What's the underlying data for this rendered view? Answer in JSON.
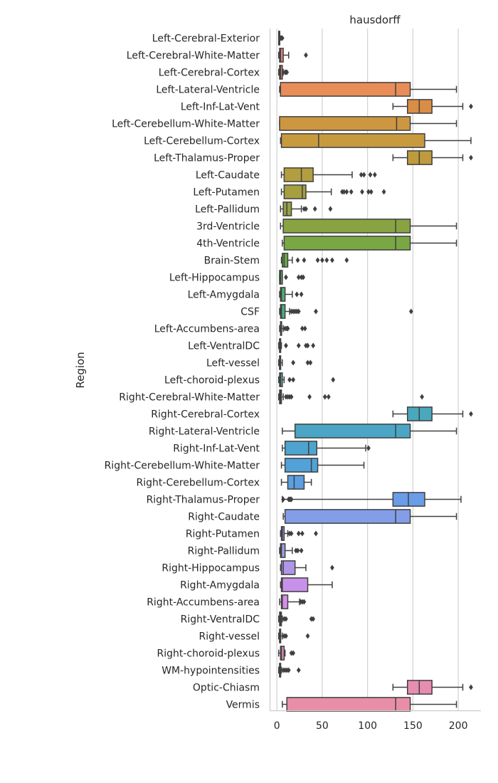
{
  "chart_data": {
    "type": "boxplot",
    "orientation": "horizontal",
    "title": "hausdorff",
    "xlabel": "",
    "ylabel": "Region",
    "xlim": [
      -8,
      225
    ],
    "xticks": [
      0,
      50,
      100,
      150,
      200
    ],
    "grid": "vertical",
    "box_style": {
      "line_color": "#404040"
    },
    "series": [
      {
        "name": "Left-Cerebral-Exterior",
        "color": "#e8918c",
        "whislo": 2,
        "q1": 2,
        "median": 2,
        "q3": 3,
        "whishi": 3,
        "fliers": [
          4,
          5,
          6
        ]
      },
      {
        "name": "Left-Cerebral-White-Matter",
        "color": "#e3837a",
        "whislo": 2,
        "q1": 3,
        "median": 4,
        "q3": 7,
        "whishi": 13,
        "fliers": [
          32
        ]
      },
      {
        "name": "Left-Cerebral-Cortex",
        "color": "#e08a6c",
        "whislo": 2,
        "q1": 3,
        "median": 4,
        "q3": 6,
        "whishi": 7,
        "fliers": [
          9,
          10,
          11
        ]
      },
      {
        "name": "Left-Lateral-Ventricle",
        "color": "#e88c58",
        "whislo": 3,
        "q1": 4,
        "median": 131,
        "q3": 147,
        "whishi": 198,
        "fliers": []
      },
      {
        "name": "Left-Inf-Lat-Vent",
        "color": "#d98d45",
        "whislo": 128,
        "q1": 144,
        "median": 157,
        "q3": 171,
        "whishi": 205,
        "fliers": [
          214
        ]
      },
      {
        "name": "Left-Cerebellum-White-Matter",
        "color": "#cd9641",
        "whislo": 3,
        "q1": 3,
        "median": 132,
        "q3": 147,
        "whishi": 198,
        "fliers": []
      },
      {
        "name": "Left-Cerebellum-Cortex",
        "color": "#c89a3e",
        "whislo": 4,
        "q1": 5,
        "median": 46,
        "q3": 163,
        "whishi": 214,
        "fliers": []
      },
      {
        "name": "Left-Thalamus-Proper",
        "color": "#bf9b3d",
        "whislo": 128,
        "q1": 144,
        "median": 157,
        "q3": 171,
        "whishi": 205,
        "fliers": [
          214
        ]
      },
      {
        "name": "Left-Caudate",
        "color": "#b39e3f",
        "whislo": 5,
        "q1": 8,
        "median": 27,
        "q3": 40,
        "whishi": 83,
        "fliers": [
          93,
          96,
          103,
          108
        ]
      },
      {
        "name": "Left-Putamen",
        "color": "#a59f40",
        "whislo": 5,
        "q1": 8,
        "median": 28,
        "q3": 32,
        "whishi": 60,
        "fliers": [
          72,
          74,
          77,
          82,
          94,
          101,
          104,
          118
        ]
      },
      {
        "name": "Left-Pallidum",
        "color": "#96a140",
        "whislo": 4,
        "q1": 7,
        "median": 11,
        "q3": 16,
        "whishi": 27,
        "fliers": [
          30,
          32,
          42,
          59
        ]
      },
      {
        "name": "3rd-Ventricle",
        "color": "#88a442",
        "whislo": 4,
        "q1": 7,
        "median": 131,
        "q3": 147,
        "whishi": 198,
        "fliers": []
      },
      {
        "name": "4th-Ventricle",
        "color": "#79a744",
        "whislo": 6,
        "q1": 8,
        "median": 131,
        "q3": 147,
        "whishi": 198,
        "fliers": []
      },
      {
        "name": "Brain-Stem",
        "color": "#6aab47",
        "whislo": 5,
        "q1": 6,
        "median": 8,
        "q3": 12,
        "whishi": 17,
        "fliers": [
          23,
          30,
          45,
          50,
          55,
          61,
          77
        ]
      },
      {
        "name": "Left-Hippocampus",
        "color": "#56ad59",
        "whislo": 3,
        "q1": 3,
        "median": 4,
        "q3": 6,
        "whishi": 6,
        "fliers": [
          10,
          24,
          27,
          29
        ]
      },
      {
        "name": "Left-Amygdala",
        "color": "#4daf72",
        "whislo": 3,
        "q1": 4,
        "median": 5,
        "q3": 9,
        "whishi": 17,
        "fliers": [
          22,
          27
        ]
      },
      {
        "name": "CSF",
        "color": "#4aae84",
        "whislo": 3,
        "q1": 4,
        "median": 5,
        "q3": 9,
        "whishi": 14,
        "fliers": [
          16,
          18,
          20,
          22,
          24,
          43,
          148
        ]
      },
      {
        "name": "Left-Accumbens-area",
        "color": "#4aad8f",
        "whislo": 3,
        "q1": 4,
        "median": 5,
        "q3": 5,
        "whishi": 7,
        "fliers": [
          9,
          11,
          12,
          28,
          31
        ]
      },
      {
        "name": "Left-VentralDC",
        "color": "#4aad98",
        "whislo": 2,
        "q1": 3,
        "median": 3,
        "q3": 4,
        "whishi": 5,
        "fliers": [
          10,
          24,
          32,
          34,
          40
        ]
      },
      {
        "name": "Left-vessel",
        "color": "#4aaca0",
        "whislo": 2,
        "q1": 3,
        "median": 3,
        "q3": 4,
        "whishi": 6,
        "fliers": [
          18,
          34,
          37
        ]
      },
      {
        "name": "Left-choroid-plexus",
        "color": "#4aaba9",
        "whislo": 2,
        "q1": 3,
        "median": 4,
        "q3": 6,
        "whishi": 8,
        "fliers": [
          14,
          18,
          62
        ]
      },
      {
        "name": "Right-Cerebral-White-Matter",
        "color": "#4aaab2",
        "whislo": 2,
        "q1": 3,
        "median": 4,
        "q3": 5,
        "whishi": 7,
        "fliers": [
          10,
          12,
          14,
          16,
          36,
          53,
          57,
          160
        ]
      },
      {
        "name": "Right-Cerebral-Cortex",
        "color": "#4aa8bc",
        "whislo": 128,
        "q1": 144,
        "median": 157,
        "q3": 171,
        "whishi": 205,
        "fliers": [
          214
        ]
      },
      {
        "name": "Right-Lateral-Ventricle",
        "color": "#4ba6c5",
        "whislo": 6,
        "q1": 20,
        "median": 131,
        "q3": 147,
        "whishi": 198,
        "fliers": []
      },
      {
        "name": "Right-Inf-Lat-Vent",
        "color": "#4ea4cf",
        "whislo": 6,
        "q1": 9,
        "median": 35,
        "q3": 44,
        "whishi": 98,
        "fliers": [
          101
        ]
      },
      {
        "name": "Right-Cerebellum-White-Matter",
        "color": "#53a1d9",
        "whislo": 5,
        "q1": 9,
        "median": 38,
        "q3": 45,
        "whishi": 96,
        "fliers": []
      },
      {
        "name": "Right-Cerebellum-Cortex",
        "color": "#5b9ee2",
        "whislo": 5,
        "q1": 12,
        "median": 19,
        "q3": 30,
        "whishi": 38,
        "fliers": []
      },
      {
        "name": "Right-Thalamus-Proper",
        "color": "#6a9ce8",
        "whislo": 6,
        "q1": 128,
        "median": 145,
        "q3": 163,
        "whishi": 203,
        "fliers": [
          7,
          13,
          14,
          15,
          16
        ]
      },
      {
        "name": "Right-Caudate",
        "color": "#839de8",
        "whislo": 7,
        "q1": 9,
        "median": 131,
        "q3": 147,
        "whishi": 198,
        "fliers": []
      },
      {
        "name": "Right-Putamen",
        "color": "#929ce8",
        "whislo": 4,
        "q1": 5,
        "median": 6,
        "q3": 8,
        "whishi": 12,
        "fliers": [
          14,
          16,
          24,
          28,
          43
        ]
      },
      {
        "name": "Right-Pallidum",
        "color": "#9f9be7",
        "whislo": 3,
        "q1": 4,
        "median": 5,
        "q3": 9,
        "whishi": 17,
        "fliers": [
          21,
          23,
          27
        ]
      },
      {
        "name": "Right-Hippocampus",
        "color": "#b096e8",
        "whislo": 4,
        "q1": 5,
        "median": 7,
        "q3": 20,
        "whishi": 32,
        "fliers": [
          61
        ]
      },
      {
        "name": "Right-Amygdala",
        "color": "#c891e9",
        "whislo": 4,
        "q1": 5,
        "median": 6,
        "q3": 34,
        "whishi": 61,
        "fliers": []
      },
      {
        "name": "Right-Accumbens-area",
        "color": "#d58fe4",
        "whislo": 3,
        "q1": 5,
        "median": 6,
        "q3": 12,
        "whishi": 25,
        "fliers": [
          26,
          28,
          30
        ]
      },
      {
        "name": "Right-VentralDC",
        "color": "#dc8ed9",
        "whislo": 2,
        "q1": 3,
        "median": 4,
        "q3": 5,
        "whishi": 6,
        "fliers": [
          8,
          10,
          38,
          40
        ]
      },
      {
        "name": "Right-vessel",
        "color": "#e08dcd",
        "whislo": 2,
        "q1": 3,
        "median": 3,
        "q3": 4,
        "whishi": 6,
        "fliers": [
          8,
          10,
          34
        ]
      },
      {
        "name": "Right-choroid-plexus",
        "color": "#e38dc2",
        "whislo": 2,
        "q1": 4,
        "median": 5,
        "q3": 8,
        "whishi": 9,
        "fliers": [
          16,
          18
        ]
      },
      {
        "name": "WM-hypointensities",
        "color": "#e68db8",
        "whislo": 2,
        "q1": 3,
        "median": 3,
        "q3": 4,
        "whishi": 5,
        "fliers": [
          7,
          9,
          11,
          13,
          24
        ]
      },
      {
        "name": "Optic-Chiasm",
        "color": "#e88db0",
        "whislo": 128,
        "q1": 144,
        "median": 157,
        "q3": 171,
        "whishi": 205,
        "fliers": [
          214
        ]
      },
      {
        "name": "Vermis",
        "color": "#e98ea9",
        "whislo": 6,
        "q1": 11,
        "median": 131,
        "q3": 147,
        "whishi": 198,
        "fliers": []
      }
    ]
  }
}
